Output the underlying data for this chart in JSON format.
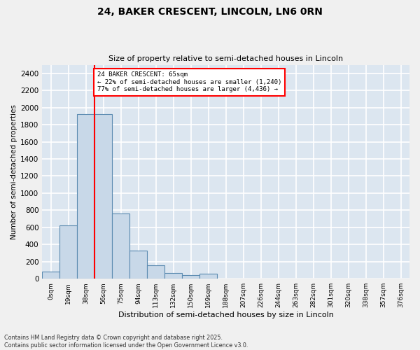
{
  "title": "24, BAKER CRESCENT, LINCOLN, LN6 0RN",
  "subtitle": "Size of property relative to semi-detached houses in Lincoln",
  "xlabel": "Distribution of semi-detached houses by size in Lincoln",
  "ylabel": "Number of semi-detached properties",
  "footnote1": "Contains HM Land Registry data © Crown copyright and database right 2025.",
  "footnote2": "Contains public sector information licensed under the Open Government Licence v3.0.",
  "bar_labels": [
    "0sqm",
    "19sqm",
    "38sqm",
    "56sqm",
    "75sqm",
    "94sqm",
    "113sqm",
    "132sqm",
    "150sqm",
    "169sqm",
    "188sqm",
    "207sqm",
    "226sqm",
    "244sqm",
    "263sqm",
    "282sqm",
    "301sqm",
    "320sqm",
    "338sqm",
    "357sqm",
    "376sqm"
  ],
  "bar_values": [
    80,
    625,
    1920,
    1920,
    760,
    330,
    160,
    70,
    45,
    60,
    0,
    0,
    0,
    0,
    0,
    0,
    0,
    0,
    0,
    0,
    0
  ],
  "bar_color": "#c8d8e8",
  "bar_edgecolor": "#5a8ab0",
  "bg_color": "#dce6f0",
  "grid_color": "#ffffff",
  "property_label": "24 BAKER CRESCENT: 65sqm",
  "smaller_pct": "← 22% of semi-detached houses are smaller (1,240)",
  "larger_pct": "77% of semi-detached houses are larger (4,436) →",
  "ylim": [
    0,
    2500
  ],
  "yticks": [
    0,
    200,
    400,
    600,
    800,
    1000,
    1200,
    1400,
    1600,
    1800,
    2000,
    2200,
    2400
  ],
  "red_line_bin_index": 3,
  "fig_bg": "#f0f0f0"
}
